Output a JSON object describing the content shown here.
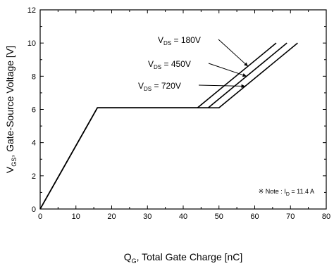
{
  "chart_data": {
    "type": "line",
    "xlabel": {
      "prefix": "Q",
      "sub": "G",
      "rest": ", Total Gate Charge [nC]"
    },
    "ylabel": {
      "prefix": "V",
      "sub": "GS",
      "rest": ",  Gate-Source Voltage [V]"
    },
    "xlim": [
      0,
      80
    ],
    "ylim": [
      0,
      12
    ],
    "xticks": [
      0,
      10,
      20,
      30,
      40,
      50,
      60,
      70,
      80
    ],
    "yticks": [
      0,
      2,
      4,
      6,
      8,
      10,
      12
    ],
    "grid": false,
    "series": [
      {
        "label_prefix": "V",
        "label_sub": "DS",
        "label_rest": " = 180V",
        "x": [
          0,
          16,
          44,
          66
        ],
        "y": [
          0,
          6.1,
          6.1,
          10
        ]
      },
      {
        "label_prefix": "V",
        "label_sub": "DS",
        "label_rest": " = 450V",
        "x": [
          0,
          16,
          47,
          69
        ],
        "y": [
          0,
          6.1,
          6.1,
          10
        ]
      },
      {
        "label_prefix": "V",
        "label_sub": "DS",
        "label_rest": " = 720V",
        "x": [
          0,
          16,
          50,
          72
        ],
        "y": [
          0,
          6.1,
          6.1,
          10
        ]
      }
    ],
    "note": {
      "symbol": "※",
      "text_prefix": " Note : I",
      "sub": "D",
      "text_rest": " = 11.4 A"
    }
  }
}
